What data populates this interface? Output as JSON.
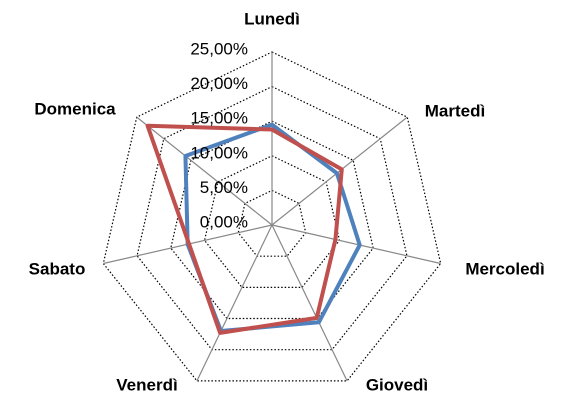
{
  "chart_data": {
    "type": "radar",
    "categories": [
      "Lunedì",
      "Martedì",
      "Mercoledì",
      "Giovedì",
      "Venerdì",
      "Sabato",
      "Domenica"
    ],
    "series": [
      {
        "color": "#4F81BD",
        "values": [
          14.5,
          12.0,
          13.0,
          15.6,
          17.0,
          12.5,
          16.0
        ]
      },
      {
        "color": "#C0504D",
        "values": [
          13.8,
          12.9,
          9.4,
          14.9,
          17.3,
          12.3,
          23.0
        ]
      }
    ],
    "ylim": [
      0,
      25
    ],
    "yticks": [
      {
        "value": 0,
        "label": "0,00%"
      },
      {
        "value": 5,
        "label": "5,00%"
      },
      {
        "value": 10,
        "label": "10,00%"
      },
      {
        "value": 15,
        "label": "15,00%"
      },
      {
        "value": 20,
        "label": "20,00%"
      },
      {
        "value": 25,
        "label": "25,00%"
      }
    ]
  }
}
